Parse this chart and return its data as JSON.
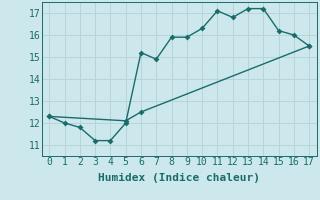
{
  "xlabel": "Humidex (Indice chaleur)",
  "background_color": "#cce8ec",
  "grid_color": "#b8d4d8",
  "line_color": "#1a6b6b",
  "xlim": [
    -0.5,
    17.5
  ],
  "ylim": [
    10.5,
    17.5
  ],
  "xticks": [
    0,
    1,
    2,
    3,
    4,
    5,
    6,
    7,
    8,
    9,
    10,
    11,
    12,
    13,
    14,
    15,
    16,
    17
  ],
  "yticks": [
    11,
    12,
    13,
    14,
    15,
    16,
    17
  ],
  "line1_x": [
    0,
    1,
    2,
    3,
    4,
    5,
    6,
    7,
    8,
    9,
    10,
    11,
    12,
    13,
    14,
    15,
    16,
    17
  ],
  "line1_y": [
    12.3,
    12.0,
    11.8,
    11.2,
    11.2,
    12.0,
    15.2,
    14.9,
    15.9,
    15.9,
    16.3,
    17.1,
    16.8,
    17.2,
    17.2,
    16.2,
    16.0,
    15.5
  ],
  "line2_x": [
    0,
    5,
    6,
    17
  ],
  "line2_y": [
    12.3,
    12.1,
    12.5,
    15.5
  ],
  "marker_size": 3,
  "font_size": 7,
  "xlabel_fontsize": 8
}
